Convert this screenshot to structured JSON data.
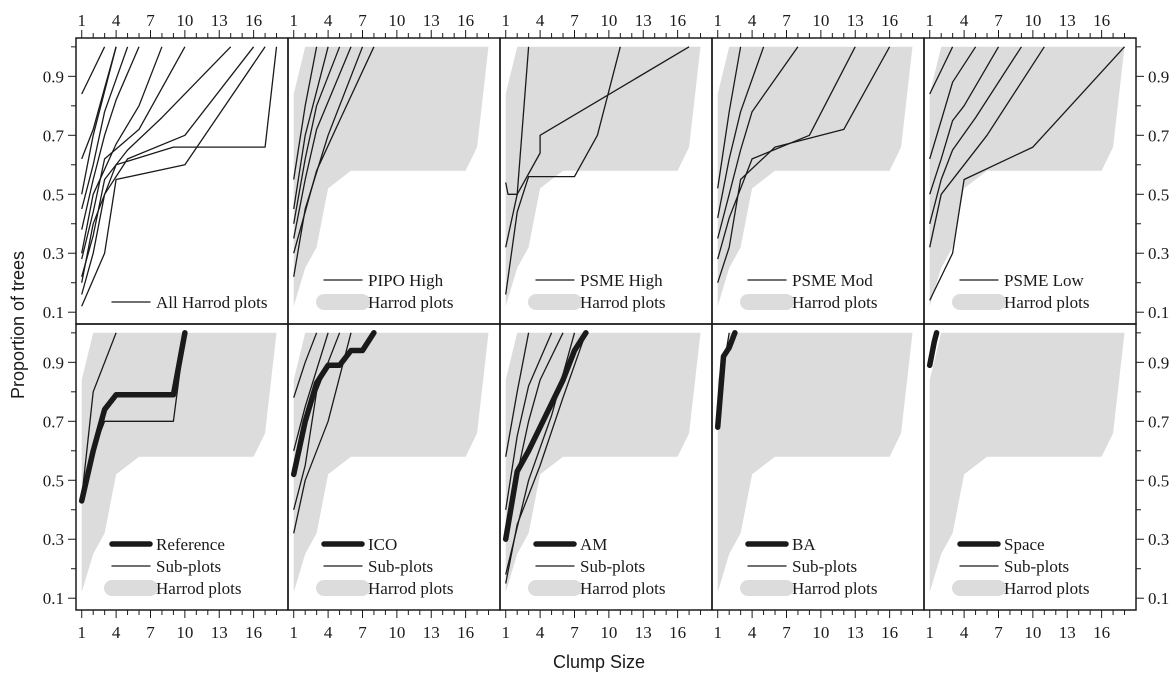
{
  "chart_data": {
    "type": "line",
    "xlabel": "Clump Size",
    "ylabel": "Proportion of trees",
    "xlim": [
      0.5,
      19
    ],
    "ylim": [
      0.06,
      1.03
    ],
    "x_ticks": [
      1,
      4,
      7,
      10,
      13,
      16
    ],
    "x_tick_labels": [
      "1",
      "4",
      "7",
      "10",
      "13",
      "16"
    ],
    "y_ticks": [
      0.1,
      0.3,
      0.5,
      0.7,
      0.9
    ],
    "y_tick_labels": [
      "0.1",
      "0.3",
      "0.5",
      "0.7",
      "0.9"
    ],
    "grid": false,
    "layout": "2 rows x 5 columns, shared axes",
    "legend_placement": "bottom-right",
    "colors": {
      "line": "#1a1a1a",
      "envelope": "#dcdcdc",
      "frame": "#1a1a1a"
    },
    "harrod_envelope": {
      "name": "Harrod plots",
      "x": [
        1,
        2,
        3,
        4,
        5,
        6,
        7,
        8,
        9,
        10,
        11,
        12,
        13,
        14,
        15,
        16,
        17,
        18
      ],
      "lower": [
        0.12,
        0.25,
        0.32,
        0.52,
        0.55,
        0.58,
        0.58,
        0.58,
        0.58,
        0.58,
        0.58,
        0.58,
        0.58,
        0.58,
        0.58,
        0.58,
        0.66,
        1.0
      ],
      "upper": [
        0.84,
        1.0,
        1.0,
        1.0,
        1.0,
        1.0,
        1.0,
        1.0,
        1.0,
        1.0,
        1.0,
        1.0,
        1.0,
        1.0,
        1.0,
        1.0,
        1.0,
        1.0
      ]
    },
    "panels": [
      {
        "row": 0,
        "col": 0,
        "legend": [
          "All Harrod plots"
        ],
        "show_envelope": false,
        "series": [
          {
            "x": [
              1,
              2,
              3
            ],
            "values": [
              0.84,
              0.92,
              1.0
            ]
          },
          {
            "x": [
              1,
              2,
              3,
              4
            ],
            "values": [
              0.62,
              0.72,
              0.86,
              1.0
            ]
          },
          {
            "x": [
              1,
              2,
              4
            ],
            "values": [
              0.5,
              0.7,
              1.0
            ]
          },
          {
            "x": [
              1,
              2,
              3,
              5
            ],
            "values": [
              0.45,
              0.6,
              0.78,
              1.0
            ]
          },
          {
            "x": [
              1,
              2,
              3,
              4,
              6
            ],
            "values": [
              0.38,
              0.55,
              0.7,
              0.82,
              1.0
            ]
          },
          {
            "x": [
              1,
              2,
              4,
              6,
              8
            ],
            "values": [
              0.3,
              0.5,
              0.67,
              0.8,
              1.0
            ]
          },
          {
            "x": [
              1,
              2,
              3,
              6,
              10
            ],
            "values": [
              0.28,
              0.44,
              0.62,
              0.72,
              1.0
            ]
          },
          {
            "x": [
              1,
              2,
              3,
              5,
              8,
              14
            ],
            "values": [
              0.22,
              0.36,
              0.55,
              0.65,
              0.76,
              1.0
            ]
          },
          {
            "x": [
              1,
              2,
              3,
              5,
              10,
              16
            ],
            "values": [
              0.16,
              0.3,
              0.5,
              0.62,
              0.7,
              1.0
            ]
          },
          {
            "x": [
              1,
              3,
              4,
              10,
              17
            ],
            "values": [
              0.12,
              0.3,
              0.55,
              0.6,
              1.0
            ]
          },
          {
            "x": [
              1,
              2,
              4,
              9,
              17,
              18
            ],
            "values": [
              0.2,
              0.4,
              0.6,
              0.66,
              0.66,
              1.0
            ]
          }
        ]
      },
      {
        "row": 0,
        "col": 1,
        "legend": [
          "PIPO High",
          "Harrod plots"
        ],
        "show_envelope": true,
        "series": [
          {
            "x": [
              1,
              2,
              3
            ],
            "values": [
              0.55,
              0.8,
              1.0
            ]
          },
          {
            "x": [
              1,
              2,
              4
            ],
            "values": [
              0.45,
              0.7,
              1.0
            ]
          },
          {
            "x": [
              1,
              2,
              3,
              5
            ],
            "values": [
              0.4,
              0.62,
              0.8,
              1.0
            ]
          },
          {
            "x": [
              1,
              2,
              3,
              6
            ],
            "values": [
              0.35,
              0.55,
              0.72,
              1.0
            ]
          },
          {
            "x": [
              1,
              3,
              5,
              8
            ],
            "values": [
              0.3,
              0.58,
              0.75,
              1.0
            ]
          },
          {
            "x": [
              1,
              2,
              4,
              7
            ],
            "values": [
              0.22,
              0.45,
              0.7,
              1.0
            ]
          }
        ]
      },
      {
        "row": 0,
        "col": 2,
        "legend": [
          "PSME High",
          "Harrod plots"
        ],
        "show_envelope": true,
        "series": [
          {
            "x": [
              1,
              1.2,
              2,
              3
            ],
            "values": [
              0.54,
              0.5,
              0.5,
              1.0
            ]
          },
          {
            "x": [
              1,
              2,
              4,
              4,
              17
            ],
            "values": [
              0.32,
              0.5,
              0.64,
              0.7,
              1.0
            ]
          },
          {
            "x": [
              1,
              2,
              3,
              7,
              9,
              11
            ],
            "values": [
              0.16,
              0.44,
              0.56,
              0.56,
              0.7,
              1.0
            ]
          }
        ]
      },
      {
        "row": 0,
        "col": 3,
        "legend": [
          "PSME Mod",
          "Harrod plots"
        ],
        "show_envelope": true,
        "series": [
          {
            "x": [
              1,
              2,
              3
            ],
            "values": [
              0.52,
              0.78,
              1.0
            ]
          },
          {
            "x": [
              1,
              2,
              3,
              5
            ],
            "values": [
              0.42,
              0.62,
              0.78,
              1.0
            ]
          },
          {
            "x": [
              1,
              2,
              3,
              4,
              8
            ],
            "values": [
              0.35,
              0.5,
              0.65,
              0.78,
              1.0
            ]
          },
          {
            "x": [
              1,
              2,
              4,
              9,
              13
            ],
            "values": [
              0.28,
              0.42,
              0.62,
              0.7,
              1.0
            ]
          },
          {
            "x": [
              1,
              2,
              3,
              6,
              12,
              16
            ],
            "values": [
              0.2,
              0.32,
              0.55,
              0.66,
              0.72,
              1.0
            ]
          }
        ]
      },
      {
        "row": 0,
        "col": 4,
        "legend": [
          "PSME Low",
          "Harrod plots"
        ],
        "show_envelope": true,
        "series": [
          {
            "x": [
              1,
              2,
              3
            ],
            "values": [
              0.84,
              0.92,
              1.0
            ]
          },
          {
            "x": [
              1,
              2,
              3,
              5
            ],
            "values": [
              0.62,
              0.75,
              0.88,
              1.0
            ]
          },
          {
            "x": [
              1,
              2,
              3,
              4,
              7
            ],
            "values": [
              0.5,
              0.62,
              0.75,
              0.8,
              1.0
            ]
          },
          {
            "x": [
              1,
              2,
              3,
              5,
              9
            ],
            "values": [
              0.4,
              0.55,
              0.65,
              0.76,
              1.0
            ]
          },
          {
            "x": [
              1,
              2,
              4,
              6,
              11
            ],
            "values": [
              0.32,
              0.5,
              0.6,
              0.7,
              1.0
            ]
          },
          {
            "x": [
              1,
              3,
              4,
              10,
              18
            ],
            "values": [
              0.14,
              0.3,
              0.55,
              0.66,
              1.0
            ]
          }
        ]
      },
      {
        "row": 1,
        "col": 0,
        "legend": [
          "Reference",
          "Sub-plots",
          "Harrod plots"
        ],
        "show_envelope": true,
        "highlight": {
          "name": "Reference",
          "x": [
            1,
            2,
            3,
            4,
            5,
            9,
            10
          ],
          "values": [
            0.43,
            0.6,
            0.74,
            0.79,
            0.79,
            0.79,
            1.0
          ]
        },
        "series": [
          {
            "x": [
              1,
              2,
              2,
              4
            ],
            "values": [
              0.44,
              0.8,
              0.8,
              1.0
            ]
          },
          {
            "x": [
              1,
              2,
              3,
              9,
              10
            ],
            "values": [
              0.46,
              0.6,
              0.7,
              0.7,
              1.0
            ]
          }
        ]
      },
      {
        "row": 1,
        "col": 1,
        "legend": [
          "ICO",
          "Sub-plots",
          "Harrod plots"
        ],
        "show_envelope": true,
        "highlight": {
          "name": "ICO",
          "x": [
            1,
            2,
            3,
            4,
            5,
            6,
            7,
            8
          ],
          "values": [
            0.52,
            0.7,
            0.83,
            0.89,
            0.89,
            0.94,
            0.94,
            1.0
          ]
        },
        "series": [
          {
            "x": [
              1,
              2,
              3
            ],
            "values": [
              0.78,
              0.9,
              1.0
            ]
          },
          {
            "x": [
              1,
              2,
              4
            ],
            "values": [
              0.6,
              0.75,
              1.0
            ]
          },
          {
            "x": [
              1,
              2,
              3,
              5
            ],
            "values": [
              0.4,
              0.55,
              0.8,
              1.0
            ]
          },
          {
            "x": [
              1,
              2,
              4,
              6
            ],
            "values": [
              0.32,
              0.5,
              0.7,
              1.0
            ]
          }
        ]
      },
      {
        "row": 1,
        "col": 2,
        "legend": [
          "AM",
          "Sub-plots",
          "Harrod plots"
        ],
        "show_envelope": true,
        "highlight": {
          "name": "AM",
          "x": [
            1,
            2,
            3,
            4,
            5,
            6,
            7,
            8
          ],
          "values": [
            0.3,
            0.53,
            0.6,
            0.68,
            0.76,
            0.84,
            0.94,
            1.0
          ]
        },
        "series": [
          {
            "x": [
              1,
              2,
              3
            ],
            "values": [
              0.58,
              0.8,
              1.0
            ]
          },
          {
            "x": [
              1,
              2,
              3,
              5
            ],
            "values": [
              0.4,
              0.65,
              0.82,
              1.0
            ]
          },
          {
            "x": [
              1,
              2,
              3,
              4,
              6
            ],
            "values": [
              0.3,
              0.52,
              0.7,
              0.84,
              1.0
            ]
          },
          {
            "x": [
              1,
              3,
              5,
              7
            ],
            "values": [
              0.18,
              0.5,
              0.72,
              1.0
            ]
          },
          {
            "x": [
              1,
              2,
              4,
              6,
              8
            ],
            "values": [
              0.15,
              0.35,
              0.55,
              0.78,
              1.0
            ]
          }
        ]
      },
      {
        "row": 1,
        "col": 3,
        "legend": [
          "BA",
          "Sub-plots",
          "Harrod plots"
        ],
        "show_envelope": true,
        "highlight": {
          "name": "BA",
          "x": [
            1,
            1.5,
            2,
            2.5
          ],
          "values": [
            0.68,
            0.92,
            0.95,
            1.0
          ]
        },
        "series": [
          {
            "x": [
              1,
              1.5,
              2
            ],
            "values": [
              0.74,
              0.88,
              1.0
            ]
          }
        ]
      },
      {
        "row": 1,
        "col": 4,
        "legend": [
          "Space",
          "Sub-plots",
          "Harrod plots"
        ],
        "show_envelope": true,
        "highlight": {
          "name": "Space",
          "x": [
            1,
            1.2,
            1.4,
            1.6
          ],
          "values": [
            0.89,
            0.93,
            0.97,
            1.0
          ]
        },
        "series": [
          {
            "x": [
              1,
              1.5
            ],
            "values": [
              0.92,
              1.0
            ]
          }
        ]
      }
    ]
  }
}
